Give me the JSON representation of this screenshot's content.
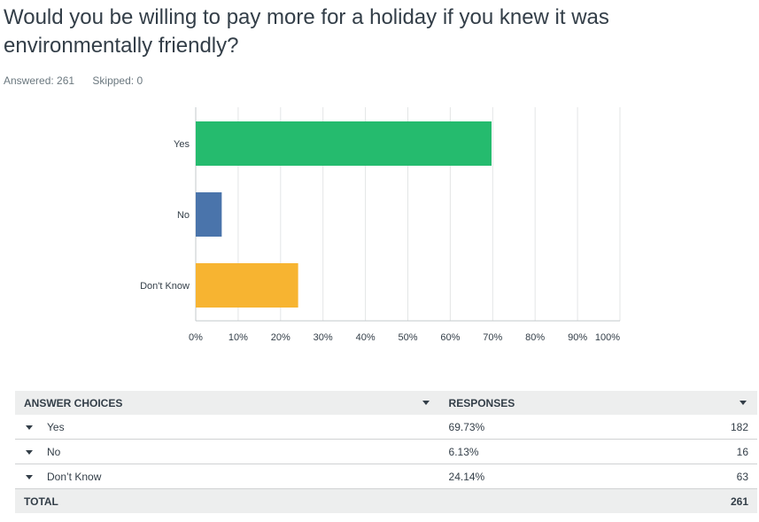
{
  "question": {
    "title": "Would you be willing to pay more for a holiday if you knew it was environmentally friendly?",
    "answered": "Answered: 261",
    "skipped": "Skipped: 0"
  },
  "chart_data": {
    "type": "bar",
    "orientation": "horizontal",
    "categories": [
      "Yes",
      "No",
      "Don't Know"
    ],
    "values": [
      69.73,
      6.13,
      24.14
    ],
    "colors": [
      "#25bb6e",
      "#4a74ab",
      "#f7b431"
    ],
    "xlim": [
      0,
      100
    ],
    "xticks": [
      "0%",
      "10%",
      "20%",
      "30%",
      "40%",
      "50%",
      "60%",
      "70%",
      "80%",
      "90%",
      "100%"
    ],
    "grid": true
  },
  "table": {
    "headers": {
      "choices": "ANSWER CHOICES",
      "responses": "RESPONSES"
    },
    "rows": [
      {
        "label": "Yes",
        "percent": "69.73%",
        "count": "182"
      },
      {
        "label": "No",
        "percent": "6.13%",
        "count": "16"
      },
      {
        "label": "Don’t Know",
        "percent": "24.14%",
        "count": "63"
      }
    ],
    "total_label": "TOTAL",
    "total_count": "261"
  }
}
